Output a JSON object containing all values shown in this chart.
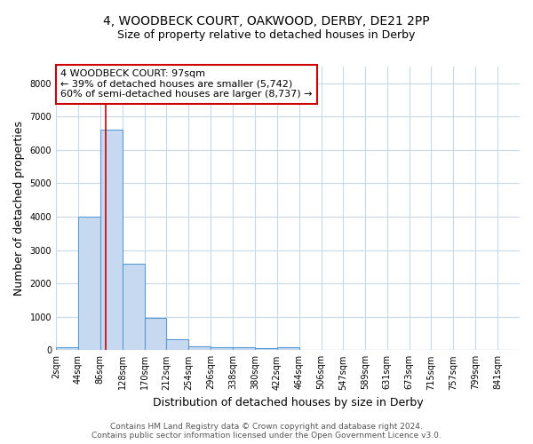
{
  "title": "4, WOODBECK COURT, OAKWOOD, DERBY, DE21 2PP",
  "subtitle": "Size of property relative to detached houses in Derby",
  "xlabel": "Distribution of detached houses by size in Derby",
  "ylabel": "Number of detached properties",
  "bar_edges": [
    2,
    44,
    86,
    128,
    170,
    212,
    254,
    296,
    338,
    380,
    422,
    464,
    506,
    547,
    589,
    631,
    673,
    715,
    757,
    799,
    841
  ],
  "bar_heights": [
    75,
    4000,
    6600,
    2600,
    975,
    325,
    125,
    100,
    75,
    50,
    75,
    0,
    0,
    0,
    0,
    0,
    0,
    0,
    0,
    0,
    0
  ],
  "bar_color": "#c6d9f0",
  "bar_edge_color": "#5b9bd5",
  "property_size": 97,
  "vline_color": "#cc0000",
  "annotation_line1": "4 WOODBECK COURT: 97sqm",
  "annotation_line2": "← 39% of detached houses are smaller (5,742)",
  "annotation_line3": "60% of semi-detached houses are larger (8,737) →",
  "annotation_box_color": "#ffffff",
  "annotation_box_edge_color": "#cc0000",
  "ylim": [
    0,
    8500
  ],
  "yticks": [
    0,
    1000,
    2000,
    3000,
    4000,
    5000,
    6000,
    7000,
    8000
  ],
  "footnote": "Contains HM Land Registry data © Crown copyright and database right 2024.\nContains public sector information licensed under the Open Government Licence v3.0.",
  "background_color": "#ffffff",
  "grid_color": "#c8d8e8",
  "title_fontsize": 10,
  "subtitle_fontsize": 9,
  "axis_label_fontsize": 9,
  "tick_fontsize": 7,
  "annotation_fontsize": 8,
  "footnote_fontsize": 6.5
}
